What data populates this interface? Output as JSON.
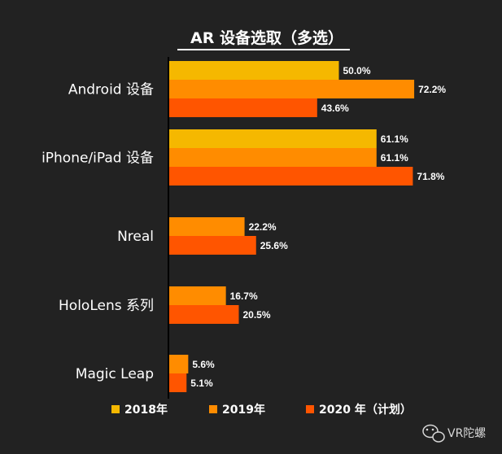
{
  "chart_data": {
    "type": "bar",
    "orientation": "horizontal",
    "title": "AR 设备选取（多选）",
    "categories": [
      "Android 设备",
      "iPhone/iPad 设备",
      "Nreal",
      "HoloLens 系列",
      "Magic Leap"
    ],
    "series": [
      {
        "name": "2018年",
        "color": "#F5B800",
        "values": [
          50.0,
          61.1,
          null,
          null,
          null
        ]
      },
      {
        "name": "2019年",
        "color": "#FF8C00",
        "values": [
          72.2,
          61.1,
          22.2,
          16.7,
          5.6
        ]
      },
      {
        "name": "2020 年（计划）",
        "color": "#FF5500",
        "values": [
          43.6,
          71.8,
          25.6,
          20.5,
          5.1
        ]
      }
    ],
    "value_suffix": "%",
    "legend_position": "bottom",
    "grid": false
  },
  "watermark": {
    "text": "VR陀螺",
    "icon": "wechat-icon"
  }
}
